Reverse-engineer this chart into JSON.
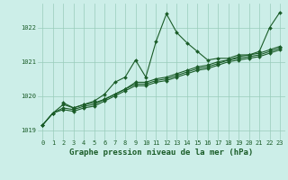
{
  "title": "Graphe pression niveau de la mer (hPa)",
  "background_color": "#cceee8",
  "grid_color": "#99ccbb",
  "line_color": "#1a5c28",
  "series": [
    {
      "x": [
        0,
        1,
        2,
        3,
        4,
        5,
        6,
        7,
        8,
        9,
        10,
        11,
        12,
        13,
        14,
        15,
        16,
        17,
        18,
        19,
        20,
        21,
        22,
        23
      ],
      "y": [
        1019.15,
        1019.5,
        1019.75,
        1019.65,
        1019.75,
        1019.85,
        1020.05,
        1020.4,
        1020.55,
        1021.05,
        1020.55,
        1021.6,
        1022.4,
        1021.85,
        1021.55,
        1021.3,
        1021.05,
        1021.1,
        1021.1,
        1021.2,
        1021.2,
        1021.3,
        1022.0,
        1022.45
      ]
    },
    {
      "x": [
        0,
        1,
        2,
        3,
        4,
        5,
        6,
        7,
        8,
        9,
        10,
        11,
        12,
        13,
        14,
        15,
        16,
        17,
        18,
        19,
        20,
        21,
        22,
        23
      ],
      "y": [
        1019.15,
        1019.5,
        1019.65,
        1019.6,
        1019.7,
        1019.75,
        1019.9,
        1020.05,
        1020.2,
        1020.35,
        1020.35,
        1020.45,
        1020.5,
        1020.6,
        1020.7,
        1020.8,
        1020.85,
        1020.95,
        1021.05,
        1021.1,
        1021.15,
        1021.2,
        1021.3,
        1021.4
      ]
    },
    {
      "x": [
        0,
        1,
        2,
        3,
        4,
        5,
        6,
        7,
        8,
        9,
        10,
        11,
        12,
        13,
        14,
        15,
        16,
        17,
        18,
        19,
        20,
        21,
        22,
        23
      ],
      "y": [
        1019.15,
        1019.5,
        1019.6,
        1019.55,
        1019.65,
        1019.7,
        1019.85,
        1020.0,
        1020.15,
        1020.3,
        1020.3,
        1020.4,
        1020.45,
        1020.55,
        1020.65,
        1020.75,
        1020.8,
        1020.9,
        1021.0,
        1021.05,
        1021.1,
        1021.15,
        1021.25,
        1021.35
      ]
    },
    {
      "x": [
        2,
        3,
        4,
        5,
        6,
        7,
        8,
        9,
        10,
        11,
        12,
        13,
        14,
        15,
        16,
        17,
        18,
        19,
        20,
        21,
        22,
        23
      ],
      "y": [
        1019.8,
        1019.65,
        1019.75,
        1019.8,
        1019.9,
        1020.05,
        1020.2,
        1020.4,
        1020.4,
        1020.5,
        1020.55,
        1020.65,
        1020.75,
        1020.85,
        1020.9,
        1021.0,
        1021.05,
        1021.15,
        1021.2,
        1021.25,
        1021.35,
        1021.45
      ]
    }
  ],
  "ylim": [
    1018.7,
    1022.7
  ],
  "xlim": [
    -0.5,
    23.5
  ],
  "yticks": [
    1019,
    1020,
    1021,
    1022
  ],
  "xticks": [
    0,
    1,
    2,
    3,
    4,
    5,
    6,
    7,
    8,
    9,
    10,
    11,
    12,
    13,
    14,
    15,
    16,
    17,
    18,
    19,
    20,
    21,
    22,
    23
  ],
  "marker": "D",
  "markersize": 2.0,
  "linewidth": 0.8,
  "title_fontsize": 6.5,
  "tick_fontsize": 5.0
}
